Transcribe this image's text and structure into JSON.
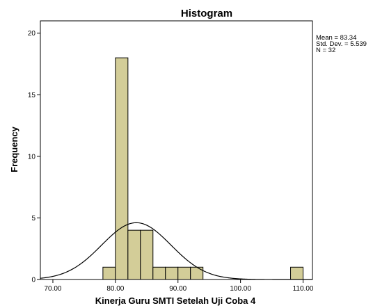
{
  "chart_data": {
    "type": "bar",
    "title": "Histogram",
    "xlabel": "Kinerja Guru SMTI Setelah Uji Coba 4",
    "ylabel": "Frequency",
    "xlim": [
      68.0,
      111.5
    ],
    "ylim": [
      0,
      21
    ],
    "x_ticks": [
      70,
      80,
      90,
      100,
      110
    ],
    "x_tick_labels": [
      "70.00",
      "80.00",
      "90.00",
      "100.00",
      "110.00"
    ],
    "y_ticks": [
      0,
      5,
      10,
      15,
      20
    ],
    "y_tick_labels": [
      "0",
      "5",
      "10",
      "15",
      "20"
    ],
    "bins": [
      {
        "start": 78.0,
        "end": 80.0,
        "count": 1
      },
      {
        "start": 80.0,
        "end": 82.0,
        "count": 18
      },
      {
        "start": 82.0,
        "end": 84.0,
        "count": 4
      },
      {
        "start": 84.0,
        "end": 86.0,
        "count": 4
      },
      {
        "start": 86.0,
        "end": 88.0,
        "count": 1
      },
      {
        "start": 88.0,
        "end": 90.0,
        "count": 1
      },
      {
        "start": 90.0,
        "end": 92.0,
        "count": 1
      },
      {
        "start": 92.0,
        "end": 94.0,
        "count": 1
      },
      {
        "start": 108.0,
        "end": 110.0,
        "count": 1
      }
    ],
    "normal_curve": {
      "mean": 83.34,
      "std_dev": 5.539,
      "n": 32,
      "bin_width": 2.0
    },
    "stats": [
      "Mean = 83.34",
      "Std. Dev. = 5.539",
      "N = 32"
    ],
    "colors": {
      "bar_fill": "#d3cd98",
      "bar_stroke": "#000000",
      "curve": "#000000",
      "frame": "#000000"
    },
    "grid": false,
    "legend_position": "top-right"
  }
}
